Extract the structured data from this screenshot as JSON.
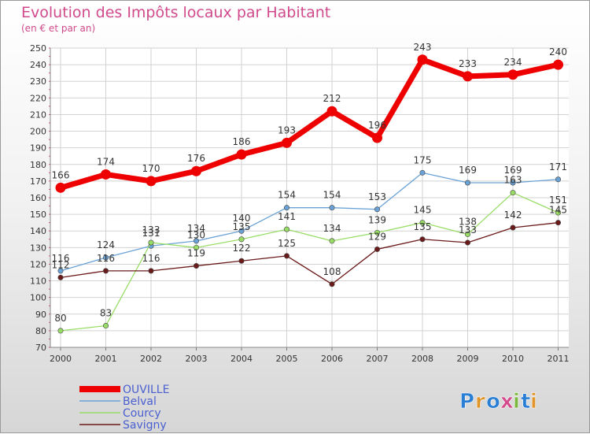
{
  "title": "Evolution des Impôts locaux par Habitant",
  "subtitle": "(en € et par an)",
  "logo": {
    "text": "Proxiti",
    "letters": [
      "P",
      "r",
      "o",
      "x",
      "i",
      "t",
      "i"
    ],
    "colors": [
      "#2a7fd4",
      "#e0942c",
      "#2a7fd4",
      "#d24a8a",
      "#7ab83e",
      "#2a7fd4",
      "#e0942c"
    ]
  },
  "chart_data": {
    "type": "line",
    "x": [
      "2000",
      "2001",
      "2002",
      "2003",
      "2004",
      "2005",
      "2006",
      "2007",
      "2008",
      "2009",
      "2010",
      "2011"
    ],
    "ylim": [
      70,
      250
    ],
    "yticks": [
      70,
      80,
      90,
      100,
      110,
      120,
      130,
      140,
      150,
      160,
      170,
      180,
      190,
      200,
      210,
      220,
      230,
      240,
      250
    ],
    "grid": true,
    "legend_position": "bottom-left",
    "series": [
      {
        "name": "OUVILLE",
        "color": "#ee0000",
        "values": [
          166,
          174,
          170,
          176,
          186,
          193,
          212,
          196,
          243,
          233,
          234,
          240
        ],
        "labels": [
          "166",
          "174",
          "170",
          "176",
          "186",
          "193",
          "212",
          "196",
          "243",
          "233",
          "234",
          "240"
        ]
      },
      {
        "name": "Belval",
        "color": "#6aa2d6",
        "values": [
          116,
          124,
          131,
          134,
          140,
          154,
          154,
          153,
          175,
          169,
          169,
          171
        ],
        "labels": [
          "116",
          "124",
          "131",
          "134",
          "140",
          "154",
          "154",
          "153",
          "175",
          "169",
          "169",
          "171"
        ]
      },
      {
        "name": "Courcy",
        "color": "#99dd66",
        "values": [
          80,
          83,
          133,
          130,
          135,
          141,
          134,
          139,
          145,
          138,
          163,
          151
        ],
        "labels": [
          "80",
          "83",
          "133",
          "130",
          "135",
          "141",
          "134",
          "139",
          "145",
          "138",
          "163",
          "151"
        ]
      },
      {
        "name": "Savigny",
        "color": "#6b1a1a",
        "values": [
          112,
          116,
          116,
          119,
          122,
          125,
          108,
          129,
          135,
          133,
          142,
          145
        ],
        "labels": [
          "112",
          "116",
          "116",
          "119",
          "122",
          "125",
          "108",
          "129",
          "135",
          "133",
          "142",
          "145"
        ]
      }
    ]
  }
}
